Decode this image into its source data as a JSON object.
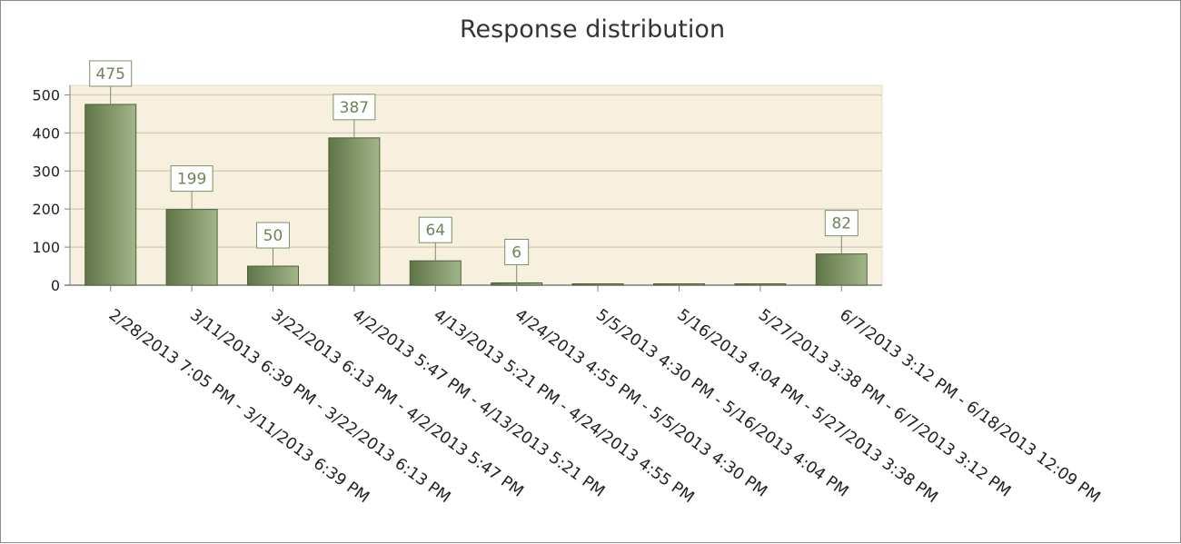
{
  "chart_data": {
    "type": "bar",
    "title": "Response distribution",
    "xlabel": "",
    "ylabel": "",
    "ylim": [
      0,
      525
    ],
    "yticks": [
      0,
      100,
      200,
      300,
      400,
      500
    ],
    "grid": true,
    "categories": [
      "2/28/2013 7:05 PM - 3/11/2013 6:39 PM",
      "3/11/2013 6:39 PM - 3/22/2013 6:13 PM",
      "3/22/2013 6:13 PM - 4/2/2013 5:47 PM",
      "4/2/2013 5:47 PM - 4/13/2013 5:21 PM",
      "4/13/2013 5:21 PM - 4/24/2013 4:55 PM",
      "4/24/2013 4:55 PM - 5/5/2013 4:30 PM",
      "5/5/2013 4:30 PM - 5/16/2013 4:04 PM",
      "5/16/2013 4:04 PM - 5/27/2013 3:38 PM",
      "5/27/2013 3:38 PM - 6/7/2013 3:12 PM",
      "6/7/2013 3:12 PM - 6/18/2013 12:09 PM"
    ],
    "values": [
      475,
      199,
      50,
      387,
      64,
      6,
      0,
      0,
      0,
      82
    ],
    "data_labels": [
      "475",
      "199",
      "50",
      "387",
      "64",
      "6",
      "",
      "",
      "",
      "82"
    ],
    "colors": {
      "plot_background": "#f7f0df",
      "bar_dark": "#5f7548",
      "bar_light": "#a3b58a",
      "bar_outline": "#4e5f3a",
      "gridline": "#d9cfb7",
      "axis": "#7f7f7f",
      "label_text": "#6f8557",
      "label_border": "#7d8f66"
    }
  }
}
